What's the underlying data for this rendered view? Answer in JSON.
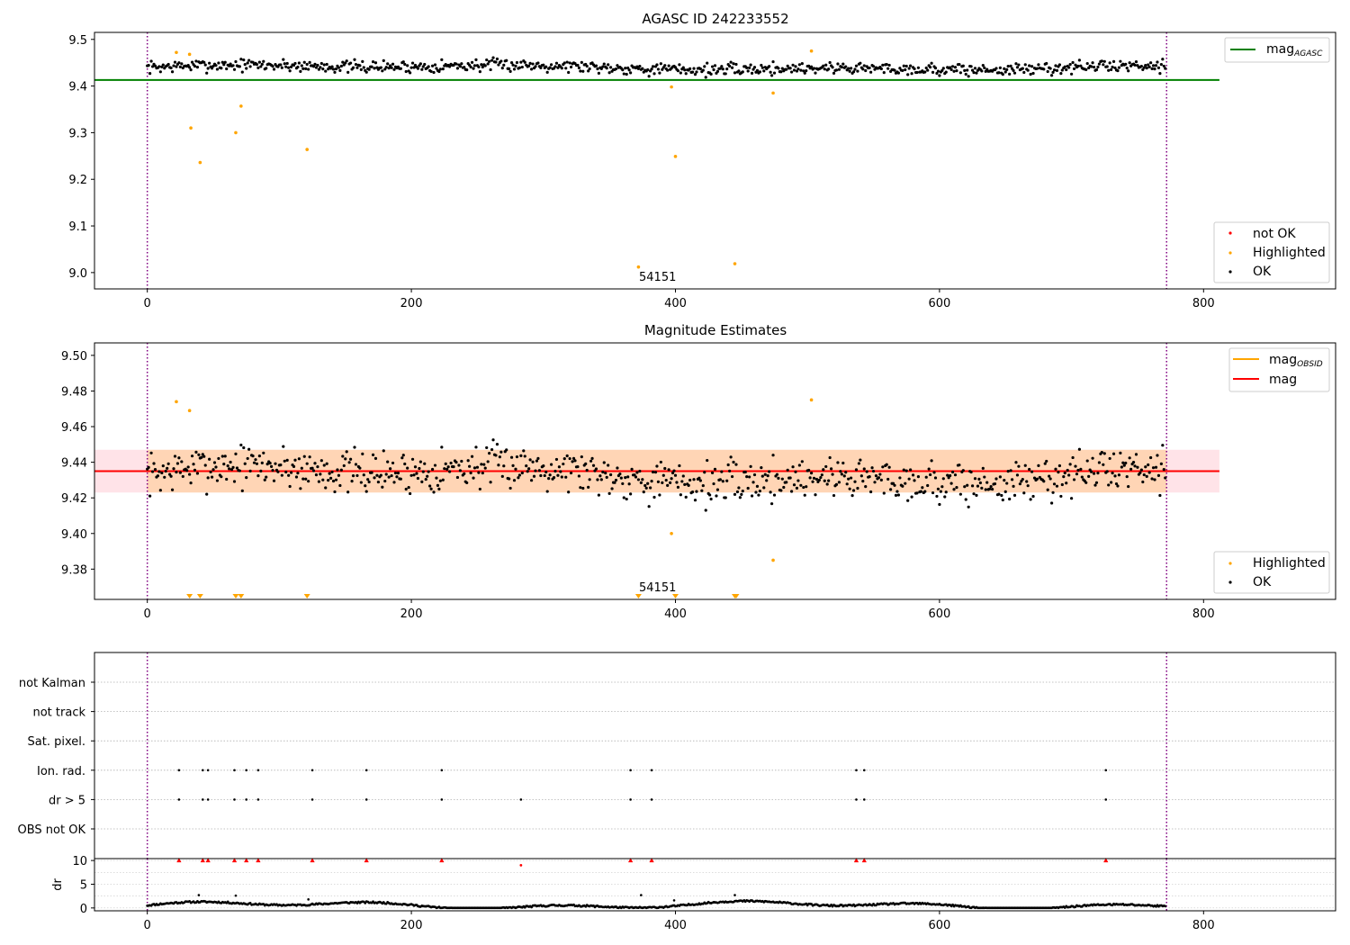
{
  "chart_data": [
    {
      "type": "scatter",
      "title": "AGASC ID 242233552",
      "xlim": [
        -40,
        900
      ],
      "ylim": [
        8.965,
        9.515
      ],
      "xticks": [
        0,
        200,
        400,
        600,
        800
      ],
      "yticks": [
        9.0,
        9.1,
        9.2,
        9.3,
        9.4,
        9.5
      ],
      "ytick_labels": [
        "9.0",
        "9.1",
        "9.2",
        "9.3",
        "9.4",
        "9.5"
      ],
      "reference_lines": {
        "mag_agasc": 9.413,
        "x_start": -40,
        "x_end": 812
      },
      "vlines": [
        0,
        772
      ],
      "ok_series": {
        "name": "OK",
        "color": "#000000",
        "n": 772,
        "base": 9.44,
        "amplitude": 0.013,
        "seed": 7
      },
      "highlighted": {
        "name": "Highlighted",
        "color": "#ffa500",
        "x": [
          22,
          32,
          33,
          40,
          67,
          71,
          121,
          372,
          397,
          400,
          445,
          474,
          503
        ],
        "y": [
          9.472,
          9.468,
          9.31,
          9.236,
          9.3,
          9.357,
          9.264,
          9.012,
          9.398,
          9.249,
          9.019,
          9.385,
          9.475
        ]
      },
      "not_ok": {
        "name": "not OK",
        "color": "#ff0000"
      },
      "annotation": {
        "text": "54151",
        "x": 372,
        "y": 8.99
      },
      "legend_upper": [
        {
          "label": "mag",
          "subscript": "AGASC",
          "color": "#008000"
        }
      ],
      "legend_lower": [
        {
          "label": "not OK",
          "color": "#ff0000"
        },
        {
          "label": "Highlighted",
          "color": "#ffa500"
        },
        {
          "label": "OK",
          "color": "#000000"
        }
      ]
    },
    {
      "type": "scatter",
      "title": "Magnitude Estimates",
      "xlim": [
        -40,
        900
      ],
      "ylim": [
        9.363,
        9.507
      ],
      "xticks": [
        0,
        200,
        400,
        600,
        800
      ],
      "yticks": [
        9.38,
        9.4,
        9.42,
        9.44,
        9.46,
        9.48,
        9.5
      ],
      "ytick_labels": [
        "9.38",
        "9.40",
        "9.42",
        "9.44",
        "9.46",
        "9.48",
        "9.50"
      ],
      "mag": 9.435,
      "mag_band": [
        9.423,
        9.447
      ],
      "mag_obsid_band": [
        9.423,
        9.447
      ],
      "band_x": [
        -40,
        812
      ],
      "obsid_x": [
        0,
        772
      ],
      "vlines": [
        0,
        772
      ],
      "ok_series": {
        "name": "OK",
        "color": "#000000",
        "n": 772,
        "base": 9.433,
        "amplitude": 0.012,
        "seed": 7
      },
      "highlighted": {
        "name": "Highlighted",
        "color": "#ffa500",
        "x": [
          22,
          32,
          503,
          397,
          474
        ],
        "y": [
          9.474,
          9.469,
          9.475,
          9.4,
          9.385
        ]
      },
      "offscale_markers": {
        "x": [
          32,
          40,
          67,
          71,
          121,
          372,
          400,
          445,
          446
        ],
        "color": "#ffa500"
      },
      "annotation": {
        "text": "54151",
        "x": 372,
        "y": 9.372
      },
      "legend_upper": [
        {
          "label": "mag",
          "subscript": "OBSID",
          "color": "#ffa500"
        },
        {
          "label": "mag",
          "subscript": "",
          "color": "#ff0000"
        }
      ],
      "legend_lower": [
        {
          "label": "Highlighted",
          "color": "#ffa500"
        },
        {
          "label": "OK",
          "color": "#000000"
        }
      ]
    },
    {
      "type": "scatter",
      "title": "",
      "xlim": [
        -40,
        900
      ],
      "xticks": [
        0,
        200,
        400,
        600,
        800
      ],
      "categories": [
        "not Kalman",
        "not track",
        "Sat. pixel.",
        "Ion. rad.",
        "dr > 5",
        "OBS not OK"
      ],
      "flag_points": {
        "Ion. rad.": [
          24,
          42,
          46,
          66,
          75,
          84,
          125,
          166,
          223,
          366,
          382,
          537,
          543,
          726
        ],
        "dr > 5": [
          24,
          42,
          46,
          66,
          75,
          84,
          125,
          166,
          223,
          283,
          366,
          382,
          537,
          543,
          726
        ]
      },
      "vlines": [
        0,
        772
      ]
    },
    {
      "type": "scatter",
      "title": "",
      "xlim": [
        -40,
        900
      ],
      "ylim": [
        -0.6,
        10.4
      ],
      "xticks": [
        0,
        200,
        400,
        600,
        800
      ],
      "yticks": [
        0,
        5,
        10
      ],
      "ytick_labels": [
        "0",
        "5",
        "10"
      ],
      "ylabel": "dr",
      "capped_points": {
        "x": [
          24,
          42,
          46,
          66,
          75,
          84,
          125,
          166,
          223,
          366,
          382,
          537,
          543,
          726
        ],
        "y": 10,
        "color": "#ff0000"
      },
      "extra_point": {
        "x": 283,
        "y": 9.0
      },
      "outliers": {
        "x": [
          39,
          67,
          122,
          374,
          399,
          445
        ],
        "y": [
          2.7,
          2.6,
          1.8,
          2.7,
          1.6,
          2.7
        ]
      },
      "vlines": [
        0,
        772
      ]
    }
  ]
}
